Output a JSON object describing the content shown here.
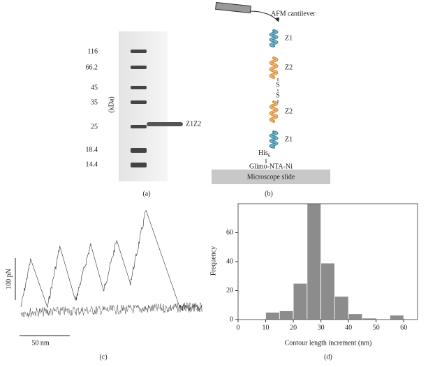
{
  "gel": {
    "markers": [
      "116",
      "66.2",
      "45",
      "35",
      "25",
      "18.4",
      "14.4"
    ],
    "axis_label": "(kDa)",
    "band_label": "Z1Z2",
    "caption": "(a)"
  },
  "diagram": {
    "cantilever": "AFM cantilever",
    "domains": [
      "Z1",
      "Z2",
      "S",
      "S",
      "Z2",
      "Z1"
    ],
    "his": "His",
    "his_sub": "6",
    "linker": "Glimo-NTA-Ni",
    "slide": "Microscope slide",
    "caption": "(b)"
  },
  "trace": {
    "force_scale": "100 pN",
    "length_scale": "50 nm",
    "caption": "(c)"
  },
  "chart_data": {
    "type": "histogram",
    "bins": [
      10,
      15,
      20,
      25,
      30,
      35,
      40,
      45,
      50,
      55,
      60
    ],
    "values": [
      5,
      6,
      25,
      80,
      39,
      16,
      4,
      1,
      0,
      3
    ],
    "color": "#8c8c8c",
    "xlim": [
      0,
      65
    ],
    "xticks": [
      0,
      10,
      20,
      30,
      40,
      50,
      60
    ],
    "ylim": [
      0,
      80
    ],
    "yticks": [
      0,
      20,
      40,
      60
    ],
    "xlabel": "Contour length increment (nm)",
    "ylabel": "Frequency",
    "caption": "(d)"
  }
}
